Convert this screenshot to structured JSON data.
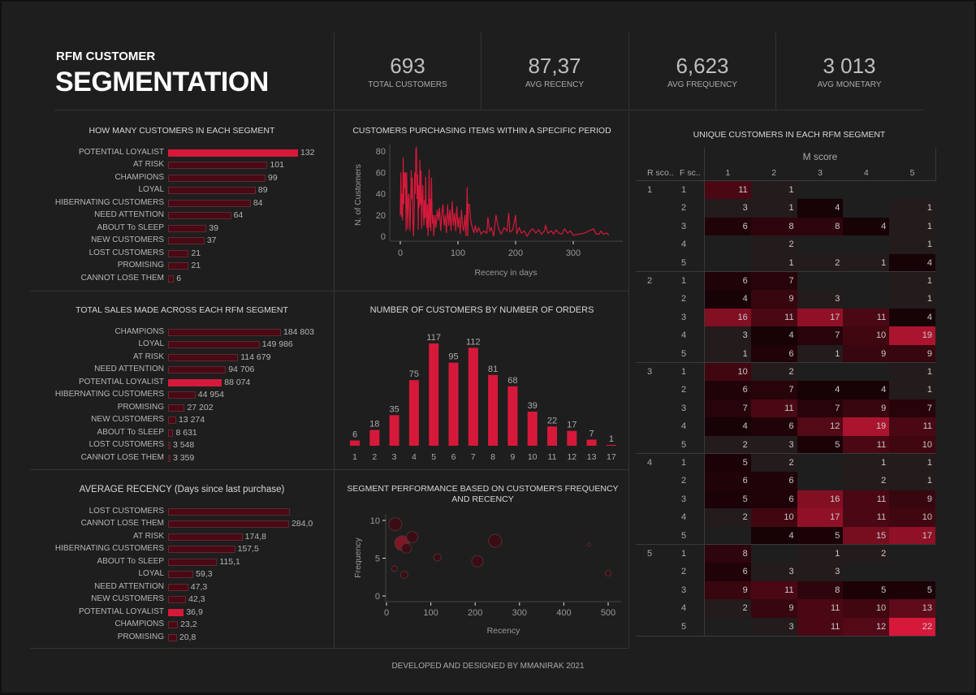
{
  "header": {
    "line1": "RFM CUSTOMER",
    "line2": "SEGMENTATION"
  },
  "kpis": [
    {
      "value": "693",
      "label": "TOTAL CUSTOMERS"
    },
    {
      "value": "87,37",
      "label": "AVG RECENCY"
    },
    {
      "value": "6,623",
      "label": "AVG FREQUENCY"
    },
    {
      "value": "3 013",
      "label": "AVG MONETARY"
    }
  ],
  "colors": {
    "bar": "#4a0915",
    "highlight": "#d6193a",
    "background": "#1e1e1e"
  },
  "footer": "DEVELOPED AND DESIGNED BY MMANIRAK 2021",
  "chart_data": [
    {
      "id": "segments",
      "type": "bar",
      "title": "HOW MANY CUSTOMERS IN EACH SEGMENT",
      "highlight": "POTENTIAL LOYALIST",
      "categories": [
        "POTENTIAL LOYALIST",
        "AT RISK",
        "CHAMPIONS",
        "LOYAL",
        "HIBERNATING CUSTOMERS",
        "NEED ATTENTION",
        "ABOUT To SLEEP",
        "NEW CUSTOMERS",
        "LOST CUSTOMERS",
        "PROMISING",
        "CANNOT LOSE THEM"
      ],
      "values": [
        132,
        101,
        99,
        89,
        84,
        64,
        39,
        37,
        21,
        21,
        6
      ],
      "value_labels": [
        "132",
        "101",
        "99",
        "89",
        "84",
        "64",
        "39",
        "37",
        "21",
        "21",
        "6"
      ]
    },
    {
      "id": "sales",
      "type": "bar",
      "title": "TOTAL SALES MADE ACROSS EACH RFM SEGMENT",
      "highlight": "POTENTIAL LOYALIST",
      "categories": [
        "CHAMPIONS",
        "LOYAL",
        "AT RISK",
        "NEED ATTENTION",
        "POTENTIAL LOYALIST",
        "HIBERNATING CUSTOMERS",
        "PROMISING",
        "NEW CUSTOMERS",
        "ABOUT To SLEEP",
        "LOST CUSTOMERS",
        "CANNOT LOSE THEM"
      ],
      "values": [
        184803,
        149986,
        114679,
        94706,
        88074,
        44954,
        27202,
        13274,
        8631,
        3548,
        3359
      ],
      "value_labels": [
        "184 803",
        "149 986",
        "114 679",
        "94 706",
        "88 074",
        "44 954",
        "27 202",
        "13 274",
        "8 631",
        "3 548",
        "3 359"
      ]
    },
    {
      "id": "recency",
      "type": "bar",
      "title": "AVERAGE RECENCY (Days since last purchase)",
      "highlight": "POTENTIAL LOYALIST",
      "categories": [
        "LOST CUSTOMERS",
        "CANNOT LOSE THEM",
        "AT RISK",
        "HIBERNATING CUSTOMERS",
        "ABOUT To SLEEP",
        "LOYAL",
        "NEED ATTENTION",
        "NEW CUSTOMERS",
        "POTENTIAL LOYALIST",
        "CHAMPIONS",
        "PROMISING"
      ],
      "values": [
        286,
        284.0,
        174.8,
        157.5,
        115.1,
        59.3,
        47.3,
        42.3,
        36.9,
        23.2,
        20.8
      ],
      "value_labels": [
        "",
        "284,0",
        "174,8",
        "157,5",
        "115,1",
        "59,3",
        "47,3",
        "42,3",
        "36,9",
        "23,2",
        "20,8"
      ]
    },
    {
      "id": "period",
      "type": "line",
      "title": "CUSTOMERS PURCHASING ITEMS WITHIN A SPECIFIC PERIOD",
      "xlabel": "Recency in days",
      "ylabel": "N. of Customers",
      "xlim": [
        0,
        365
      ],
      "ylim": [
        0,
        85
      ],
      "xticks": [
        "0",
        "100",
        "200",
        "300"
      ],
      "yticks": [
        "0",
        "20",
        "40",
        "60",
        "80"
      ],
      "points": [
        [
          0,
          20
        ],
        [
          1,
          60
        ],
        [
          2,
          18
        ],
        [
          3,
          40
        ],
        [
          4,
          15
        ],
        [
          5,
          74
        ],
        [
          6,
          30
        ],
        [
          7,
          60
        ],
        [
          8,
          45
        ],
        [
          9,
          60
        ],
        [
          10,
          5
        ],
        [
          11,
          60
        ],
        [
          12,
          30
        ],
        [
          13,
          7
        ],
        [
          14,
          38
        ],
        [
          15,
          40
        ],
        [
          16,
          22
        ],
        [
          17,
          5
        ],
        [
          19,
          62
        ],
        [
          20,
          35
        ],
        [
          21,
          55
        ],
        [
          22,
          12
        ],
        [
          23,
          0
        ],
        [
          24,
          20
        ],
        [
          25,
          60
        ],
        [
          26,
          40
        ],
        [
          27,
          82
        ],
        [
          28,
          83
        ],
        [
          29,
          35
        ],
        [
          30,
          58
        ],
        [
          31,
          6
        ],
        [
          32,
          48
        ],
        [
          33,
          27
        ],
        [
          34,
          72
        ],
        [
          35,
          30
        ],
        [
          36,
          62
        ],
        [
          37,
          7
        ],
        [
          38,
          35
        ],
        [
          39,
          48
        ],
        [
          40,
          25
        ],
        [
          41,
          10
        ],
        [
          42,
          34
        ],
        [
          43,
          17
        ],
        [
          44,
          56
        ],
        [
          45,
          20
        ],
        [
          46,
          8
        ],
        [
          47,
          30
        ],
        [
          48,
          0
        ],
        [
          49,
          18
        ],
        [
          50,
          63
        ],
        [
          51,
          8
        ],
        [
          52,
          35
        ],
        [
          53,
          5
        ],
        [
          54,
          55
        ],
        [
          55,
          25
        ],
        [
          56,
          12
        ],
        [
          57,
          20
        ],
        [
          58,
          0
        ],
        [
          60,
          20
        ],
        [
          62,
          8
        ],
        [
          64,
          25
        ],
        [
          66,
          15
        ],
        [
          68,
          27
        ],
        [
          70,
          5
        ],
        [
          72,
          20
        ],
        [
          74,
          30
        ],
        [
          76,
          10
        ],
        [
          78,
          20
        ],
        [
          80,
          3
        ],
        [
          82,
          30
        ],
        [
          84,
          10
        ],
        [
          86,
          25
        ],
        [
          88,
          5
        ],
        [
          90,
          33
        ],
        [
          92,
          10
        ],
        [
          94,
          22
        ],
        [
          96,
          5
        ],
        [
          98,
          28
        ],
        [
          100,
          8
        ],
        [
          102,
          18
        ],
        [
          104,
          2
        ],
        [
          106,
          25
        ],
        [
          108,
          10
        ],
        [
          110,
          5
        ],
        [
          112,
          20
        ],
        [
          114,
          0
        ],
        [
          116,
          46
        ],
        [
          117,
          0
        ],
        [
          118,
          30
        ],
        [
          120,
          30
        ],
        [
          122,
          15
        ],
        [
          125,
          8
        ],
        [
          128,
          3
        ],
        [
          130,
          10
        ],
        [
          133,
          4
        ],
        [
          136,
          8
        ],
        [
          140,
          2
        ],
        [
          145,
          5
        ],
        [
          150,
          3
        ],
        [
          152,
          18
        ],
        [
          155,
          5
        ],
        [
          158,
          8
        ],
        [
          162,
          0
        ],
        [
          166,
          20
        ],
        [
          170,
          8
        ],
        [
          175,
          2
        ],
        [
          180,
          8
        ],
        [
          185,
          5
        ],
        [
          188,
          22
        ],
        [
          190,
          4
        ],
        [
          195,
          6
        ],
        [
          200,
          20
        ],
        [
          202,
          2
        ],
        [
          206,
          8
        ],
        [
          210,
          3
        ],
        [
          215,
          5
        ],
        [
          220,
          0
        ],
        [
          225,
          5
        ],
        [
          230,
          7
        ],
        [
          235,
          3
        ],
        [
          240,
          6
        ],
        [
          245,
          2
        ],
        [
          250,
          5
        ],
        [
          252,
          10
        ],
        [
          256,
          3
        ],
        [
          262,
          5
        ],
        [
          266,
          2
        ],
        [
          270,
          6
        ],
        [
          275,
          3
        ],
        [
          280,
          2
        ],
        [
          285,
          7
        ],
        [
          290,
          3
        ],
        [
          295,
          5
        ],
        [
          300,
          1
        ],
        [
          310,
          2
        ],
        [
          320,
          3
        ],
        [
          335,
          7
        ],
        [
          340,
          2
        ],
        [
          345,
          2
        ],
        [
          348,
          5
        ],
        [
          352,
          2
        ],
        [
          358,
          3
        ],
        [
          362,
          1
        ]
      ]
    },
    {
      "id": "orders",
      "type": "bar",
      "title": "NUMBER OF CUSTOMERS BY NUMBER OF ORDERS",
      "categories": [
        "1",
        "2",
        "3",
        "4",
        "5",
        "6",
        "7",
        "8",
        "9",
        "10",
        "11",
        "12",
        "13",
        "17"
      ],
      "values": [
        6,
        18,
        35,
        75,
        117,
        95,
        112,
        81,
        68,
        39,
        22,
        17,
        7,
        1
      ]
    },
    {
      "id": "bubble",
      "type": "scatter",
      "title": "SEGMENT PERFORMANCE BASED ON CUSTOMER'S FREQUENCY AND RECENCY",
      "xlabel": "Recency",
      "ylabel": "Frequency",
      "xlim": [
        0,
        530
      ],
      "ylim": [
        0,
        10.5
      ],
      "xticks": [
        "0",
        "100",
        "200",
        "300",
        "400",
        "500"
      ],
      "yticks": [
        "0",
        "5",
        "10"
      ],
      "points": [
        {
          "x": 20,
          "y": 9.5,
          "size": 8
        },
        {
          "x": 35,
          "y": 7.0,
          "size": 9,
          "highlight": true
        },
        {
          "x": 45,
          "y": 6.3,
          "size": 6
        },
        {
          "x": 58,
          "y": 7.8,
          "size": 7
        },
        {
          "x": 18,
          "y": 3.6,
          "size": 3.5
        },
        {
          "x": 40,
          "y": 2.8,
          "size": 4.5
        },
        {
          "x": 115,
          "y": 5.1,
          "size": 4.5
        },
        {
          "x": 205,
          "y": 4.6,
          "size": 7
        },
        {
          "x": 245,
          "y": 7.3,
          "size": 8
        },
        {
          "x": 457,
          "y": 6.8,
          "size": 2
        },
        {
          "x": 500,
          "y": 3.0,
          "size": 3.5
        }
      ]
    },
    {
      "id": "heatmap",
      "type": "heatmap",
      "title": "UNIQUE CUSTOMERS IN EACH RFM SEGMENT",
      "col_group": "M score",
      "row_headers": [
        "R sco..",
        "F sc.."
      ],
      "columns": [
        "1",
        "2",
        "3",
        "4",
        "5"
      ],
      "rows": [
        {
          "r": "1",
          "f": "1",
          "v": [
            11,
            1,
            null,
            null,
            null
          ]
        },
        {
          "r": "",
          "f": "2",
          "v": [
            3,
            1,
            4,
            null,
            1
          ]
        },
        {
          "r": "",
          "f": "3",
          "v": [
            6,
            8,
            8,
            4,
            1
          ]
        },
        {
          "r": "",
          "f": "4",
          "v": [
            null,
            2,
            null,
            null,
            1
          ]
        },
        {
          "r": "",
          "f": "5",
          "v": [
            null,
            1,
            2,
            1,
            4
          ]
        },
        {
          "r": "2",
          "f": "1",
          "v": [
            6,
            7,
            null,
            null,
            1
          ]
        },
        {
          "r": "",
          "f": "2",
          "v": [
            4,
            9,
            3,
            null,
            1
          ]
        },
        {
          "r": "",
          "f": "3",
          "v": [
            16,
            11,
            17,
            11,
            4
          ]
        },
        {
          "r": "",
          "f": "4",
          "v": [
            3,
            4,
            7,
            10,
            19
          ]
        },
        {
          "r": "",
          "f": "5",
          "v": [
            1,
            6,
            1,
            9,
            9
          ]
        },
        {
          "r": "3",
          "f": "1",
          "v": [
            10,
            2,
            null,
            null,
            1
          ]
        },
        {
          "r": "",
          "f": "2",
          "v": [
            6,
            7,
            4,
            4,
            1
          ]
        },
        {
          "r": "",
          "f": "3",
          "v": [
            7,
            11,
            7,
            9,
            7
          ]
        },
        {
          "r": "",
          "f": "4",
          "v": [
            4,
            6,
            12,
            19,
            11
          ]
        },
        {
          "r": "",
          "f": "5",
          "v": [
            2,
            3,
            5,
            11,
            10
          ]
        },
        {
          "r": "4",
          "f": "1",
          "v": [
            5,
            2,
            null,
            1,
            1
          ]
        },
        {
          "r": "",
          "f": "2",
          "v": [
            6,
            6,
            null,
            2,
            1
          ]
        },
        {
          "r": "",
          "f": "3",
          "v": [
            5,
            6,
            16,
            11,
            9
          ]
        },
        {
          "r": "",
          "f": "4",
          "v": [
            2,
            10,
            17,
            11,
            10
          ]
        },
        {
          "r": "",
          "f": "5",
          "v": [
            null,
            4,
            5,
            15,
            17
          ]
        },
        {
          "r": "5",
          "f": "1",
          "v": [
            8,
            null,
            1,
            2,
            null
          ]
        },
        {
          "r": "",
          "f": "2",
          "v": [
            6,
            3,
            3,
            null,
            null
          ]
        },
        {
          "r": "",
          "f": "3",
          "v": [
            9,
            11,
            8,
            5,
            5
          ]
        },
        {
          "r": "",
          "f": "4",
          "v": [
            2,
            9,
            11,
            10,
            13
          ]
        },
        {
          "r": "",
          "f": "5",
          "v": [
            null,
            3,
            11,
            12,
            22
          ]
        }
      ]
    }
  ]
}
